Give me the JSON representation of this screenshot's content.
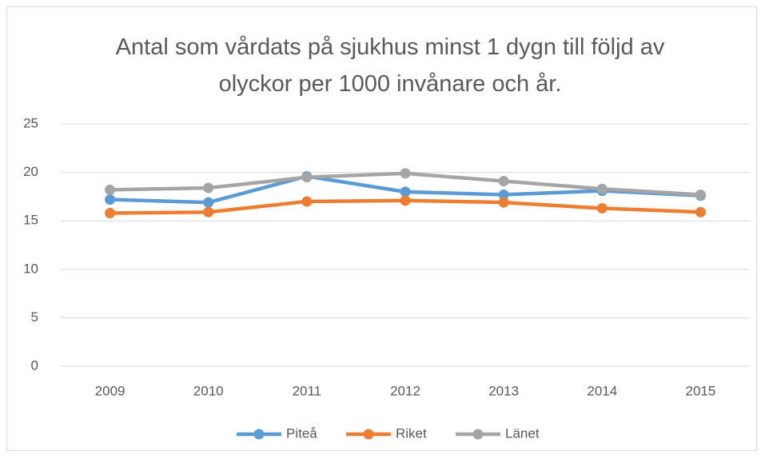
{
  "chart_data": {
    "type": "line",
    "title": "Antal som vårdats på sjukhus minst 1 dygn till följd av olyckor per 1000 invånare och år.",
    "categories": [
      "2009",
      "2010",
      "2011",
      "2012",
      "2013",
      "2014",
      "2015"
    ],
    "series": [
      {
        "name": "Piteå",
        "color": "#5b9bd5",
        "values": [
          17.2,
          16.9,
          19.6,
          18.0,
          17.7,
          18.1,
          17.6
        ]
      },
      {
        "name": "Riket",
        "color": "#ed7d31",
        "values": [
          15.8,
          15.9,
          17.0,
          17.1,
          16.9,
          16.3,
          15.9
        ]
      },
      {
        "name": "Länet",
        "color": "#a5a5a5",
        "values": [
          18.2,
          18.4,
          19.5,
          19.9,
          19.1,
          18.3,
          17.7
        ]
      }
    ],
    "ylim": [
      0,
      25
    ],
    "yticks": [
      0,
      5,
      10,
      15,
      20,
      25
    ],
    "grid": true,
    "legend": "bottom"
  }
}
